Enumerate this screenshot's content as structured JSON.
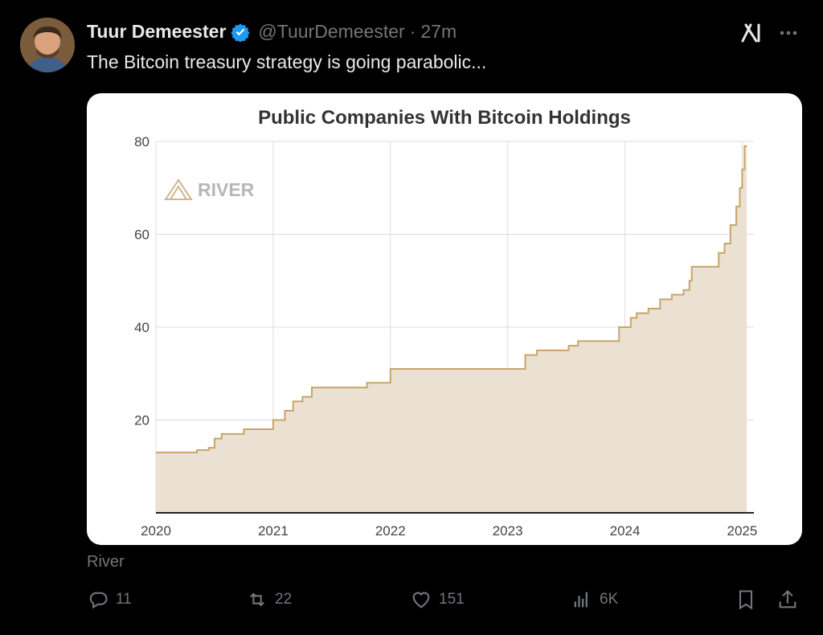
{
  "author": {
    "name": "Tuur Demeester",
    "handle": "@TuurDemeester",
    "separator": "·",
    "time": "27m",
    "verified": true,
    "avatar_icon": "user-avatar",
    "verified_icon": "verified-badge-icon"
  },
  "tweet": {
    "text": "The Bitcoin treasury strategy is going parabolic...",
    "source_label": "River"
  },
  "header_icons": [
    "grok-icon",
    "more-icon"
  ],
  "actions": {
    "reply_count": "11",
    "retweet_count": "22",
    "like_count": "151",
    "views_count": "6K"
  },
  "colors": {
    "background": "#000000",
    "text": "#e7e9ea",
    "muted": "#71767b",
    "verified": "#1d9bf0",
    "chart_line": "#c8a46a",
    "chart_fill": "#ebe1d2"
  },
  "chart_data": {
    "type": "area",
    "title": "Public Companies With Bitcoin Holdings",
    "watermark": "RIVER",
    "xlabel": "",
    "ylabel": "",
    "x_ticks": [
      "2020",
      "2021",
      "2022",
      "2023",
      "2024",
      "2025"
    ],
    "y_ticks": [
      20,
      40,
      60,
      80
    ],
    "xlim": [
      2020,
      2025.1
    ],
    "ylim": [
      0,
      80
    ],
    "grid": true,
    "step": true,
    "series": [
      {
        "x": [
          2020.0,
          2020.27,
          2020.35,
          2020.45,
          2020.5,
          2020.56,
          2020.62,
          2020.75,
          2020.84,
          2021.0,
          2021.1,
          2021.17,
          2021.25,
          2021.33,
          2021.6,
          2021.8,
          2022.0,
          2022.5,
          2022.98,
          2023.15,
          2023.25,
          2023.4,
          2023.52,
          2023.6,
          2023.8,
          2023.95,
          2024.0,
          2024.05,
          2024.1,
          2024.2,
          2024.3,
          2024.4,
          2024.5,
          2024.55,
          2024.57,
          2024.6,
          2024.75,
          2024.8,
          2024.85,
          2024.9,
          2024.95,
          2024.98,
          2025.0,
          2025.02,
          2025.04
        ],
        "y": [
          13,
          13,
          13.5,
          14,
          16,
          17,
          17,
          18,
          18,
          20,
          22,
          24,
          25,
          27,
          27,
          28,
          31,
          31,
          31,
          34,
          35,
          35,
          36,
          37,
          37,
          40,
          40,
          42,
          43,
          44,
          46,
          47,
          48,
          50,
          53,
          53,
          53,
          56,
          58,
          62,
          66,
          70,
          74,
          79,
          79
        ]
      }
    ]
  }
}
